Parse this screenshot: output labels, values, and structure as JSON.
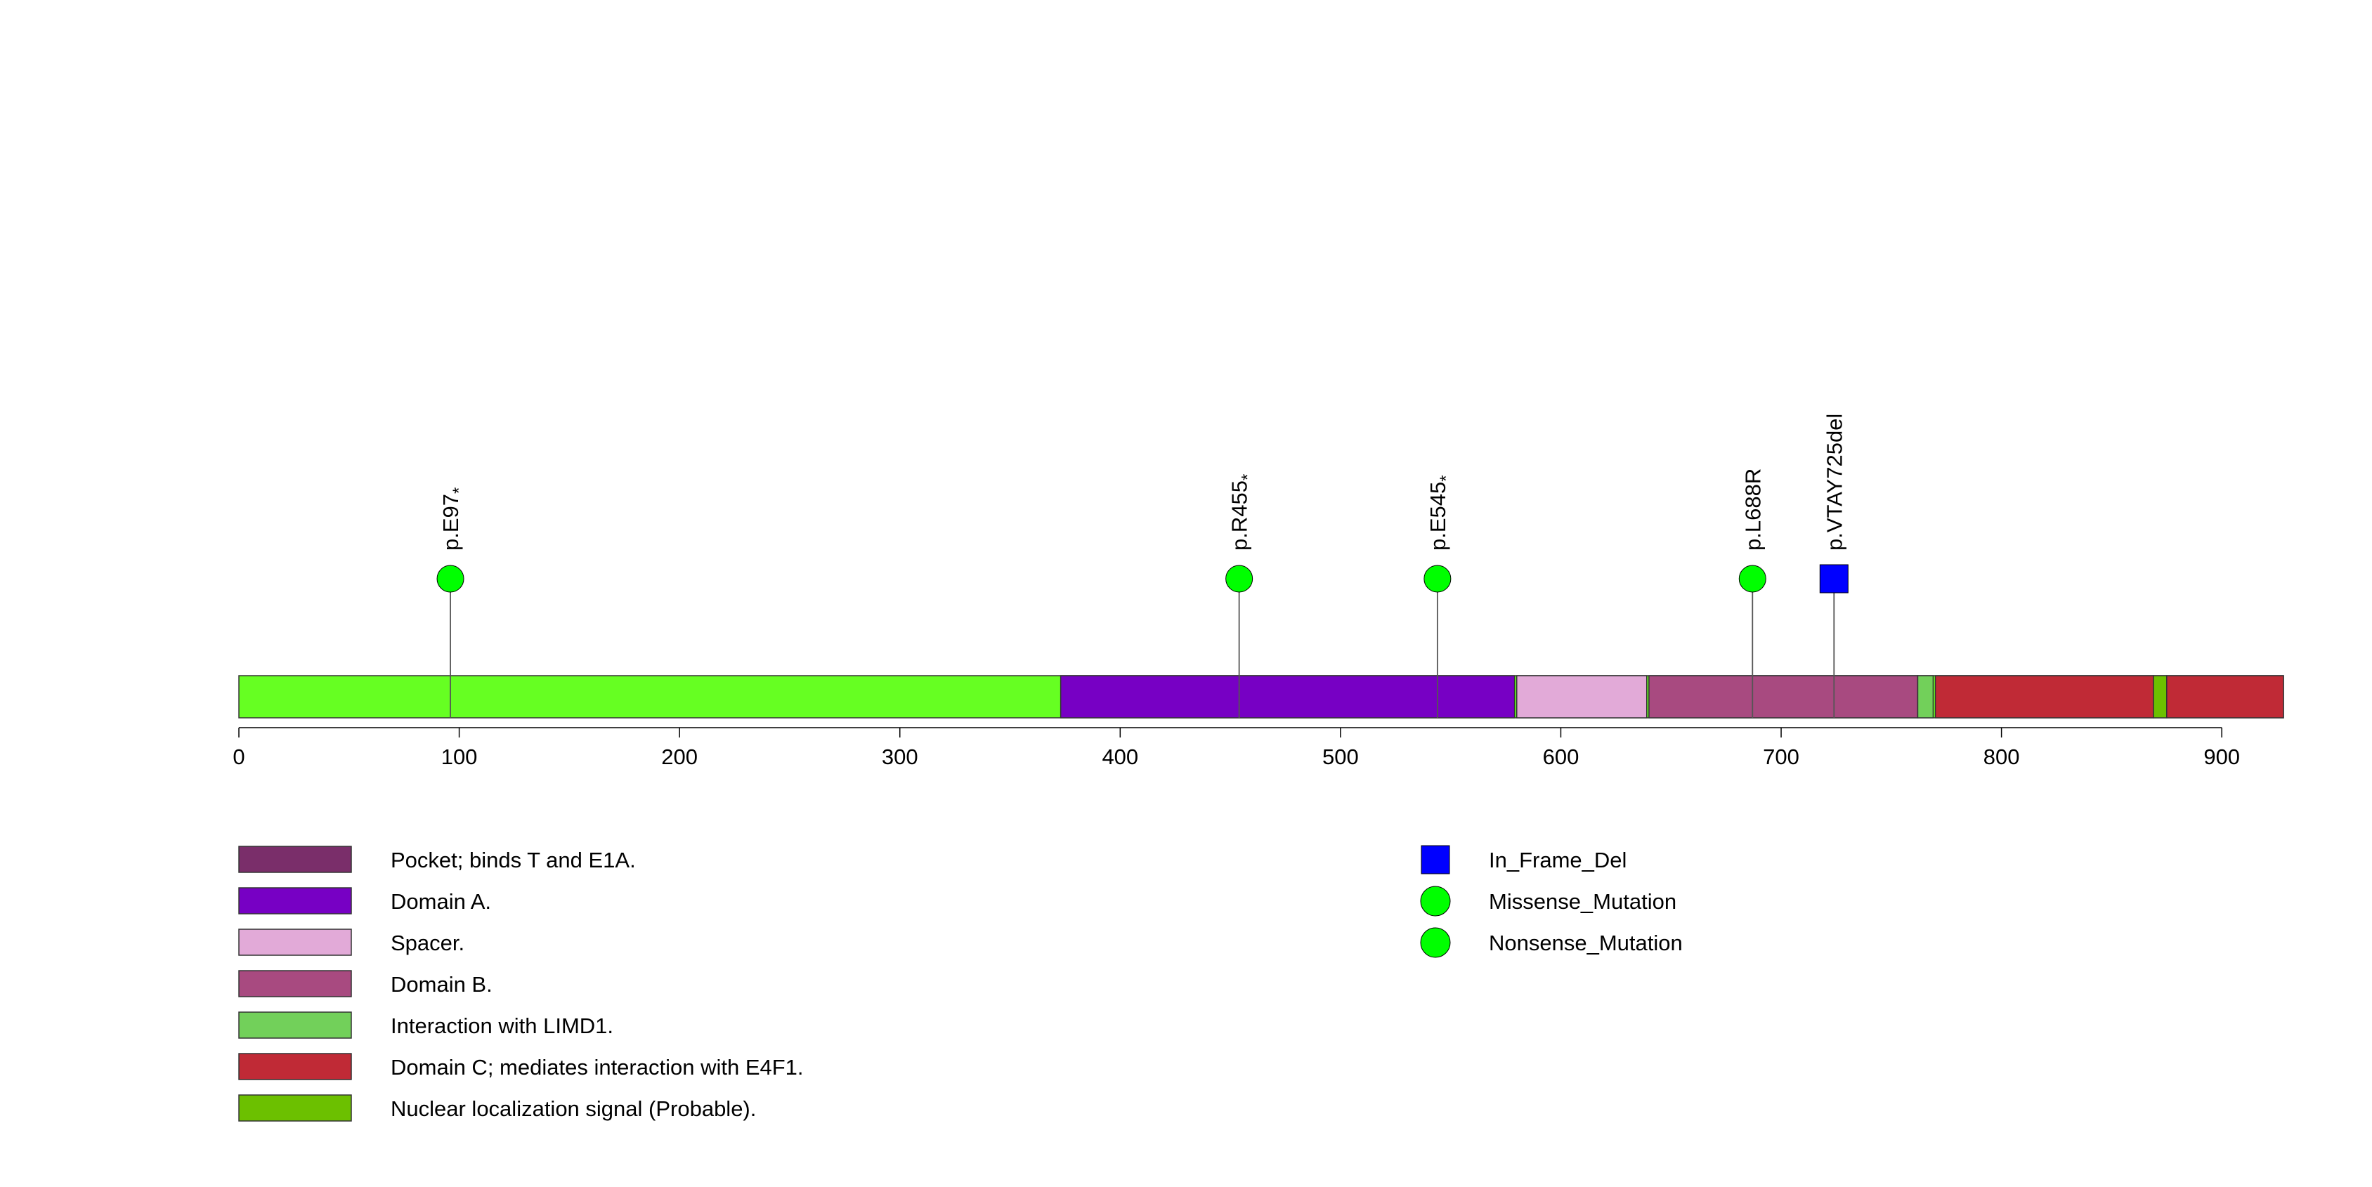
{
  "chart_data": {
    "type": "lollipop",
    "xlim": [
      0,
      928
    ],
    "x_ticks": [
      0,
      100,
      200,
      300,
      400,
      500,
      600,
      700,
      800,
      900
    ],
    "backbone": {
      "start": 1,
      "end": 928,
      "color": "#66ff22"
    },
    "domains": [
      {
        "name": "Domain A.",
        "start": 373,
        "end": 579,
        "color": "#7700c4"
      },
      {
        "name": "Spacer.",
        "start": 580,
        "end": 639,
        "color": "#e2aad8"
      },
      {
        "name": "Domain B.",
        "start": 640,
        "end": 762,
        "color": "#a84a80"
      },
      {
        "name": "Interaction with LIMD1.",
        "start": 762,
        "end": 769,
        "color": "#72d05a"
      },
      {
        "name": "Domain C; mediates interaction with E4F1.",
        "start": 770,
        "end": 869,
        "color": "#c02a36"
      },
      {
        "name": "Nuclear localization signal (Probable).",
        "start": 869,
        "end": 875,
        "color": "#6cc000"
      },
      {
        "name": "Domain C; mediates interaction with E4F1.",
        "start": 875,
        "end": 928,
        "color": "#c02a36"
      }
    ],
    "mutations": [
      {
        "label": "p.E97",
        "star": "*",
        "position": 96,
        "type": "Nonsense_Mutation",
        "shape": "circle",
        "color": "#00ff00"
      },
      {
        "label": "p.R455",
        "star": "*",
        "position": 454,
        "type": "Nonsense_Mutation",
        "shape": "circle",
        "color": "#00ff00"
      },
      {
        "label": "p.E545",
        "star": "*",
        "position": 544,
        "type": "Nonsense_Mutation",
        "shape": "circle",
        "color": "#00ff00"
      },
      {
        "label": "p.L688R",
        "star": "",
        "position": 687,
        "type": "Missense_Mutation",
        "shape": "circle",
        "color": "#00ff00"
      },
      {
        "label": "p.VTAY725del",
        "star": "",
        "position": 724,
        "type": "In_Frame_Del",
        "shape": "square",
        "color": "#0000ff"
      }
    ],
    "domain_legend": [
      {
        "label": "Pocket; binds T and E1A.",
        "color": "#7a2e6a"
      },
      {
        "label": "Domain A.",
        "color": "#7700c4"
      },
      {
        "label": "Spacer.",
        "color": "#e2aad8"
      },
      {
        "label": "Domain B.",
        "color": "#a84a80"
      },
      {
        "label": "Interaction with LIMD1.",
        "color": "#72d05a"
      },
      {
        "label": "Domain C; mediates interaction with E4F1.",
        "color": "#c02a36"
      },
      {
        "label": "Nuclear localization signal (Probable).",
        "color": "#6cc000"
      }
    ],
    "mutation_legend": [
      {
        "label": "In_Frame_Del",
        "shape": "square",
        "color": "#0000ff"
      },
      {
        "label": "Missense_Mutation",
        "shape": "circle",
        "color": "#00ff00"
      },
      {
        "label": "Nonsense_Mutation",
        "shape": "circle",
        "color": "#00ff00"
      }
    ]
  }
}
